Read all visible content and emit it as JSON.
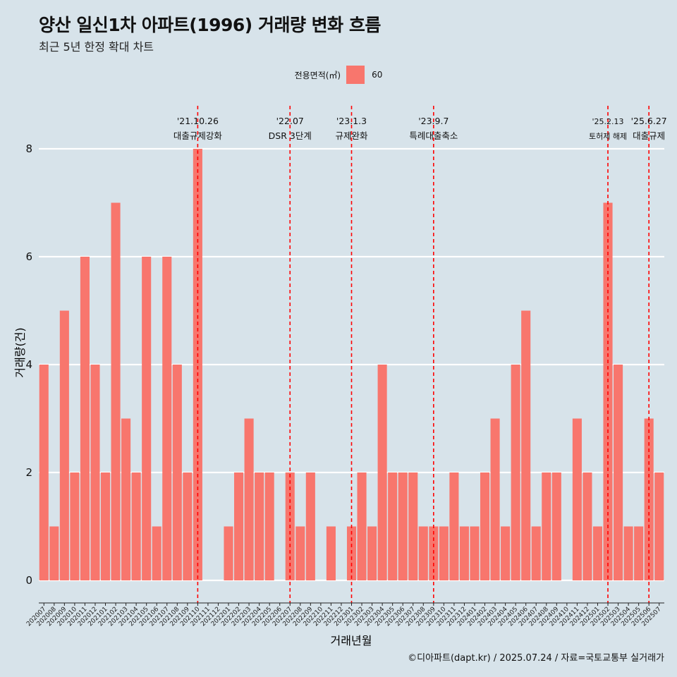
{
  "title": "양산 일신1차 아파트(1996) 거래량 변화 흐름",
  "subtitle": "최근 5년 한정 확대 차트",
  "legend": {
    "title": "전용면적(㎡)",
    "item": "60"
  },
  "caption": "©디아파트(dapt.kr) / 2025.07.24 / 자료=국토교통부 실거래가",
  "colors": {
    "bar": "#F8766D",
    "background": "#d7e3ea",
    "event_line": "#ff0000",
    "grid": "#ffffff"
  },
  "chart_data": {
    "type": "bar",
    "xlabel": "거래년월",
    "ylabel": "거래량(건)",
    "ylim": [
      0,
      8
    ],
    "yticks": [
      0,
      2,
      4,
      6,
      8
    ],
    "categories": [
      "202007",
      "202008",
      "202009",
      "202010",
      "202011",
      "202012",
      "202101",
      "202102",
      "202103",
      "202104",
      "202105",
      "202106",
      "202107",
      "202108",
      "202109",
      "202110",
      "202111",
      "202112",
      "202201",
      "202202",
      "202203",
      "202204",
      "202205",
      "202206",
      "202207",
      "202208",
      "202209",
      "202210",
      "202211",
      "202212",
      "202301",
      "202302",
      "202303",
      "202304",
      "202305",
      "202306",
      "202307",
      "202308",
      "202309",
      "202310",
      "202311",
      "202312",
      "202401",
      "202402",
      "202403",
      "202404",
      "202405",
      "202406",
      "202407",
      "202408",
      "202409",
      "202410",
      "202411",
      "202412",
      "202501",
      "202502",
      "202503",
      "202504",
      "202505",
      "202506",
      "202507"
    ],
    "series": [
      {
        "name": "60",
        "values": [
          4,
          1,
          5,
          2,
          6,
          4,
          2,
          7,
          3,
          2,
          6,
          1,
          6,
          4,
          2,
          8,
          0,
          0,
          1,
          2,
          3,
          2,
          2,
          0,
          2,
          1,
          2,
          0,
          1,
          0,
          1,
          2,
          1,
          4,
          2,
          2,
          2,
          1,
          1,
          1,
          2,
          1,
          1,
          2,
          3,
          1,
          4,
          5,
          1,
          2,
          2,
          0,
          3,
          2,
          1,
          7,
          4,
          1,
          1,
          3,
          2
        ]
      }
    ],
    "events": [
      {
        "date": "'21.10.26",
        "label": "대출규제강화",
        "at": "202110"
      },
      {
        "date": "'22.07",
        "label": "DSR 3단계",
        "at": "202207"
      },
      {
        "date": "'23.1.3",
        "label": "규제완화",
        "at": "202301"
      },
      {
        "date": "'23.9.7",
        "label": "특례대출축소",
        "at": "202309"
      },
      {
        "date": "'25.2.13",
        "label": "토허제 해제",
        "at": "202502"
      },
      {
        "date": "'25.6.27",
        "label": "대출규제",
        "at": "202506"
      }
    ]
  }
}
